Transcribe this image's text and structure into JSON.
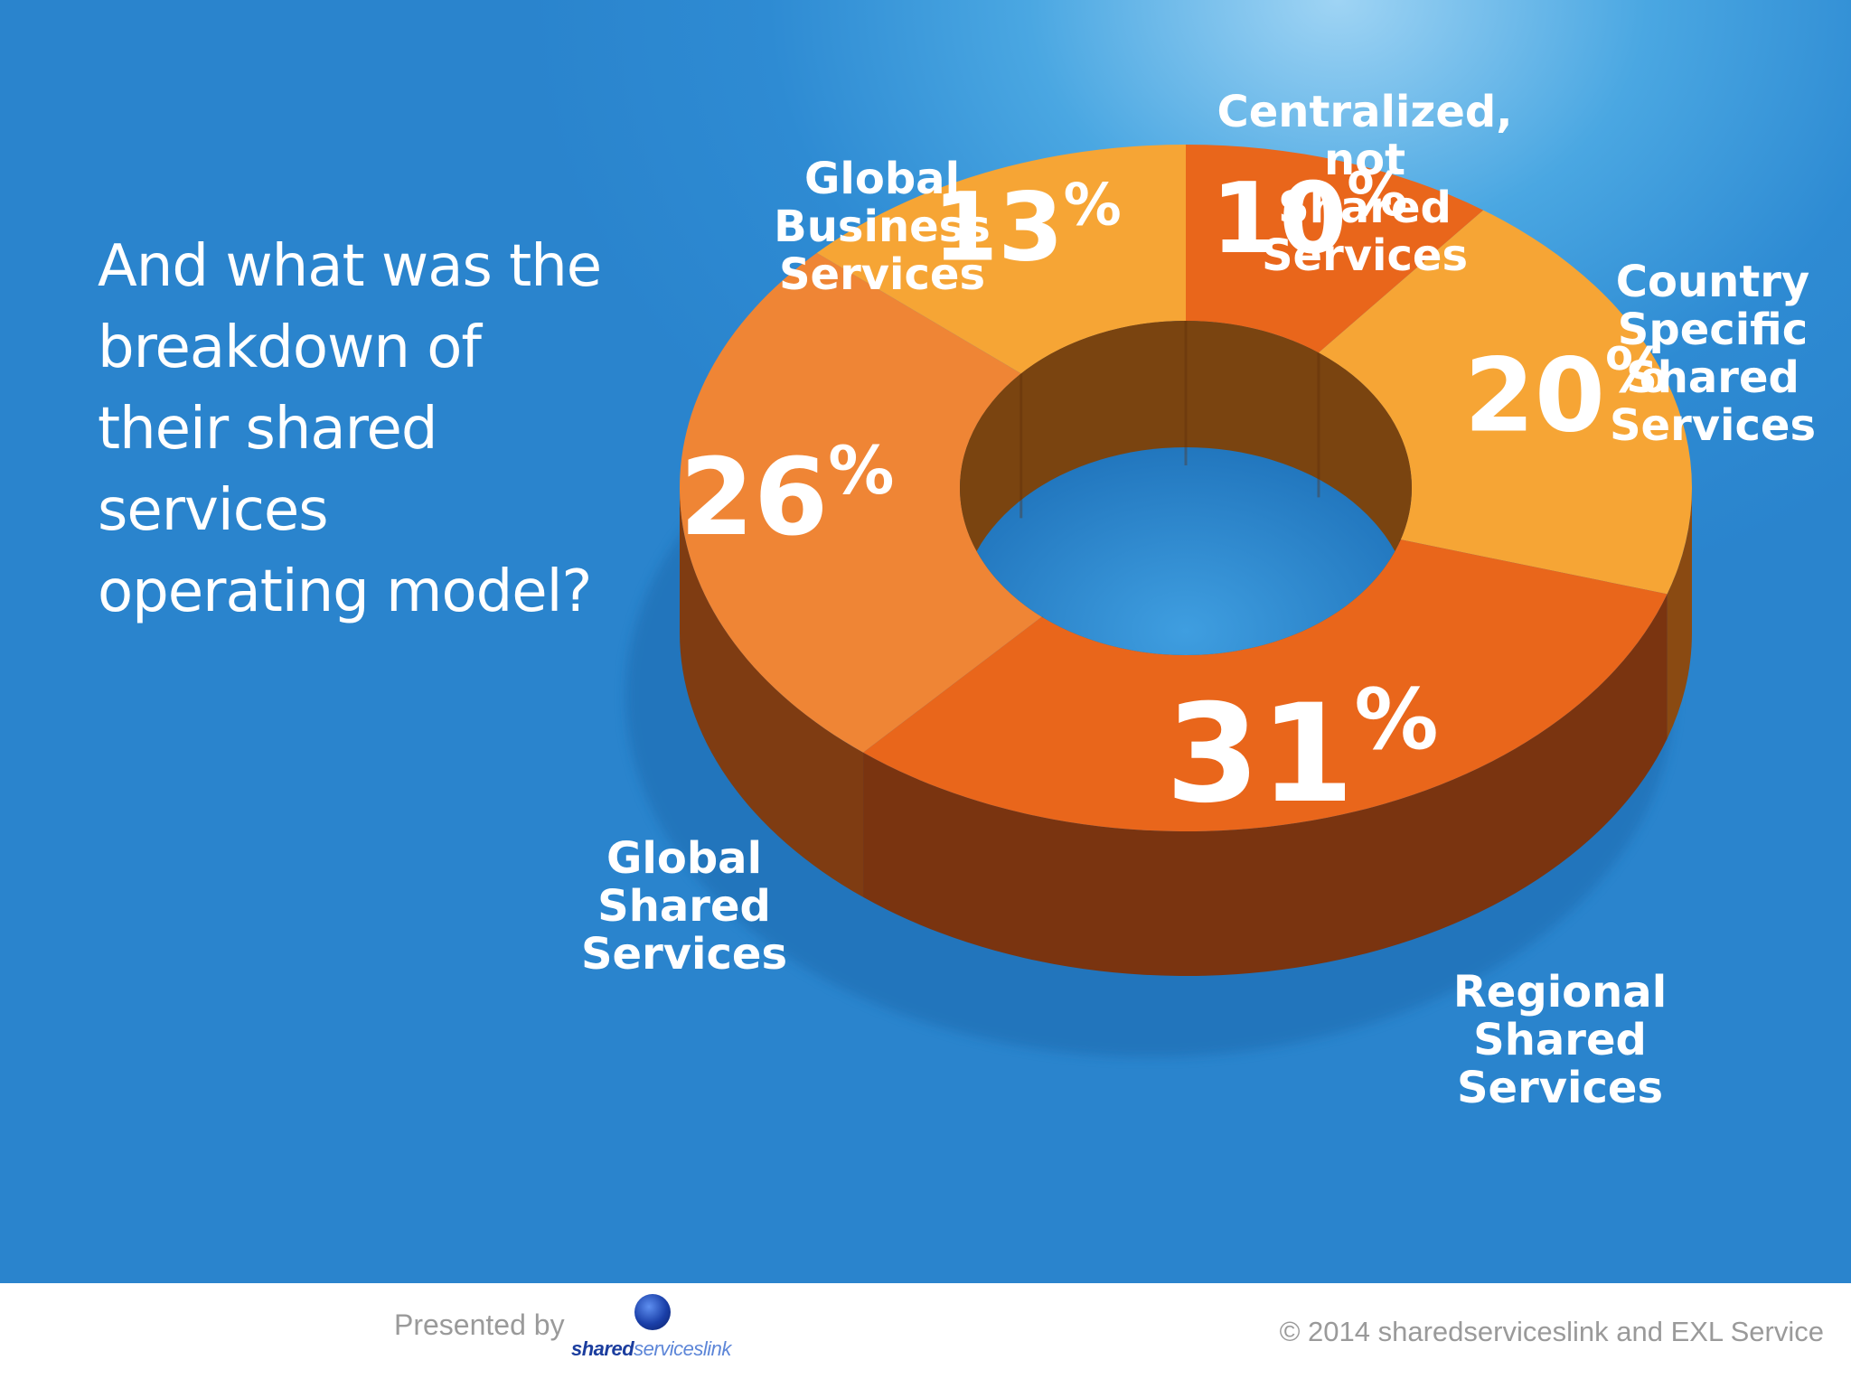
{
  "question": "And what was the breakdown of their shared services operating model?",
  "footer": {
    "presented_by": "Presented by",
    "logo_text_strong": "shared",
    "logo_text_light": "services",
    "logo_text_end": "link",
    "copyright": "© 2014 sharedserviceslink and EXL Service"
  },
  "colors": {
    "background": "#2e8bd3",
    "light_orange": "#f6a535",
    "medium_orange": "#ef8535",
    "dark_orange": "#e9661b",
    "side_dark": "#7c3510"
  },
  "chart_data": {
    "type": "pie",
    "style": "3d-donut",
    "title": "",
    "slices": [
      {
        "label": "Centralized, not Shared Services",
        "value": 10,
        "display": "10%",
        "color": "#e9661b"
      },
      {
        "label": "Country Specific Shared Services",
        "value": 20,
        "display": "20%",
        "color": "#f6a535"
      },
      {
        "label": "Regional Shared Services",
        "value": 31,
        "display": "31%",
        "color": "#e9661b"
      },
      {
        "label": "Global Shared Services",
        "value": 26,
        "display": "26%",
        "color": "#ef8535"
      },
      {
        "label": "Global Business Services",
        "value": 13,
        "display": "13%",
        "color": "#f6a535"
      }
    ]
  }
}
